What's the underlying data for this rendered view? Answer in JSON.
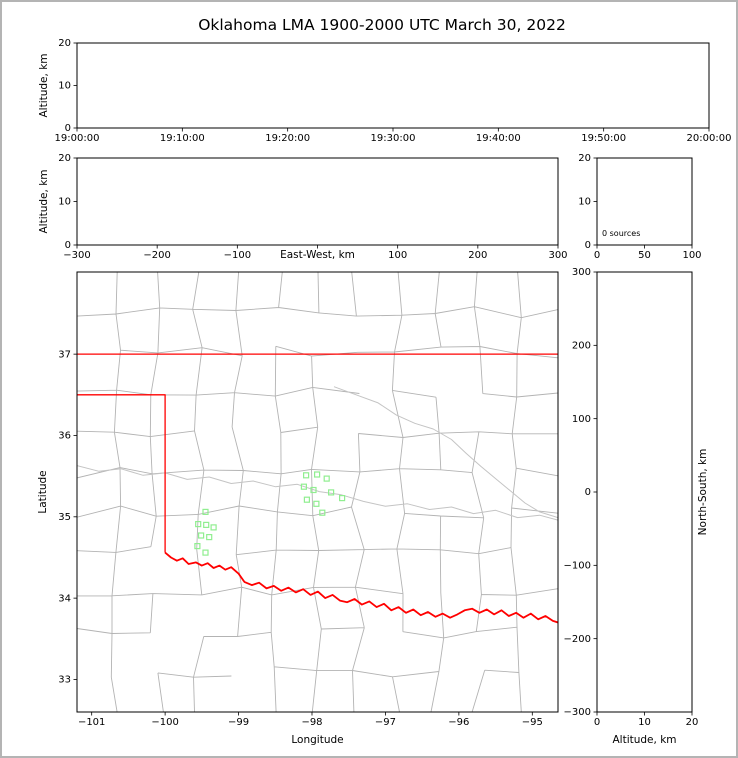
{
  "title": "Oklahoma LMA 1900-2000 UTC March 30, 2022",
  "colors": {
    "figure_border": "#b4b4b4",
    "background": "#ffffff",
    "axes_frame": "#000000",
    "text": "#000000",
    "state_border": "#ff0000",
    "county_lines": "#b3b3b3",
    "rivers": "#c4c4c4",
    "marker": "#90ee90"
  },
  "chart_data": [
    {
      "id": "time_height",
      "type": "scatter",
      "xlabel": "",
      "ylabel": "Altitude, km",
      "xlim": [
        0,
        6
      ],
      "ylim": [
        0,
        20
      ],
      "x_ticks": {
        "values": [
          0,
          1,
          2,
          3,
          4,
          5,
          6
        ],
        "labels": [
          "19:00:00",
          "19:10:00",
          "19:20:00",
          "19:30:00",
          "19:40:00",
          "19:50:00",
          "20:00:00"
        ]
      },
      "y_ticks": {
        "values": [
          0,
          10,
          20
        ],
        "labels": [
          "0",
          "10",
          "20"
        ]
      },
      "points": []
    },
    {
      "id": "ew_height",
      "type": "scatter",
      "xlabel": "East-West, km",
      "ylabel": "Altitude, km",
      "xlim": [
        -300,
        300
      ],
      "ylim": [
        0,
        20
      ],
      "x_ticks": {
        "values": [
          -300,
          -200,
          -100,
          0,
          100,
          200,
          300
        ],
        "labels": [
          "−300",
          "−200",
          "−100",
          "",
          "100",
          "200",
          "300"
        ]
      },
      "y_ticks": {
        "values": [
          0,
          10,
          20
        ],
        "labels": [
          "0",
          "10",
          "20"
        ]
      },
      "points": []
    },
    {
      "id": "source_histogram",
      "type": "scatter",
      "xlabel": "",
      "ylabel": "",
      "annotation": "0 sources",
      "xlim": [
        0,
        100
      ],
      "ylim": [
        0,
        20
      ],
      "x_ticks": {
        "values": [
          0,
          50,
          100
        ],
        "labels": [
          "0",
          "50",
          "100"
        ]
      },
      "y_ticks": {
        "values": [
          0,
          10,
          20
        ],
        "labels": [
          "0",
          "10",
          "20"
        ]
      },
      "points": []
    },
    {
      "id": "plan_view_map",
      "type": "scatter",
      "xlabel": "Longitude",
      "ylabel": "Latitude",
      "xlim": [
        -101.2,
        -94.65
      ],
      "ylim": [
        32.6,
        38.01
      ],
      "x_ticks": {
        "values": [
          -101,
          -100,
          -99,
          -98,
          -97,
          -96,
          -95
        ],
        "labels": [
          "−101",
          "−100",
          "−99",
          "−98",
          "−97",
          "−96",
          "−95"
        ]
      },
      "y_ticks": {
        "values": [
          33,
          34,
          35,
          36,
          37
        ],
        "labels": [
          "33",
          "34",
          "35",
          "36",
          "37"
        ]
      },
      "points": [
        [
          -99.45,
          35.06
        ],
        [
          -99.55,
          34.91
        ],
        [
          -99.44,
          34.9
        ],
        [
          -99.34,
          34.87
        ],
        [
          -99.51,
          34.77
        ],
        [
          -99.4,
          34.75
        ],
        [
          -99.56,
          34.64
        ],
        [
          -99.45,
          34.56
        ],
        [
          -98.08,
          35.51
        ],
        [
          -97.93,
          35.52
        ],
        [
          -97.8,
          35.47
        ],
        [
          -98.11,
          35.37
        ],
        [
          -97.98,
          35.33
        ],
        [
          -97.74,
          35.3
        ],
        [
          -98.07,
          35.21
        ],
        [
          -97.94,
          35.16
        ],
        [
          -97.59,
          35.23
        ],
        [
          -97.86,
          35.05
        ]
      ],
      "state_border": [
        [
          [
            -101.2,
            37.0
          ],
          [
            -94.65,
            37.0
          ]
        ],
        [
          [
            -101.2,
            36.5
          ],
          [
            -100.0,
            36.5
          ],
          [
            -100.0,
            34.56
          ]
        ],
        [
          [
            -100.0,
            34.56
          ],
          [
            -99.92,
            34.5
          ],
          [
            -99.84,
            34.46
          ],
          [
            -99.76,
            34.49
          ],
          [
            -99.68,
            34.42
          ],
          [
            -99.58,
            34.44
          ],
          [
            -99.5,
            34.4
          ],
          [
            -99.42,
            34.43
          ],
          [
            -99.34,
            34.37
          ],
          [
            -99.26,
            34.4
          ],
          [
            -99.18,
            34.35
          ],
          [
            -99.1,
            34.38
          ],
          [
            -99.0,
            34.3
          ],
          [
            -98.92,
            34.2
          ],
          [
            -98.82,
            34.16
          ],
          [
            -98.72,
            34.19
          ],
          [
            -98.62,
            34.12
          ],
          [
            -98.52,
            34.15
          ],
          [
            -98.42,
            34.09
          ],
          [
            -98.32,
            34.13
          ],
          [
            -98.22,
            34.07
          ],
          [
            -98.12,
            34.11
          ],
          [
            -98.02,
            34.04
          ],
          [
            -97.92,
            34.08
          ],
          [
            -97.82,
            34.0
          ],
          [
            -97.72,
            34.04
          ],
          [
            -97.62,
            33.97
          ],
          [
            -97.52,
            33.95
          ],
          [
            -97.42,
            33.99
          ],
          [
            -97.32,
            33.92
          ],
          [
            -97.22,
            33.96
          ],
          [
            -97.12,
            33.89
          ],
          [
            -97.02,
            33.93
          ],
          [
            -96.92,
            33.85
          ],
          [
            -96.82,
            33.89
          ],
          [
            -96.72,
            33.82
          ],
          [
            -96.62,
            33.86
          ],
          [
            -96.52,
            33.79
          ],
          [
            -96.42,
            33.83
          ],
          [
            -96.32,
            33.77
          ],
          [
            -96.22,
            33.81
          ],
          [
            -96.12,
            33.76
          ],
          [
            -96.02,
            33.8
          ],
          [
            -95.92,
            33.85
          ],
          [
            -95.82,
            33.87
          ],
          [
            -95.72,
            33.82
          ],
          [
            -95.62,
            33.86
          ],
          [
            -95.52,
            33.8
          ],
          [
            -95.42,
            33.85
          ],
          [
            -95.32,
            33.78
          ],
          [
            -95.22,
            33.82
          ],
          [
            -95.12,
            33.76
          ],
          [
            -95.02,
            33.81
          ],
          [
            -94.92,
            33.74
          ],
          [
            -94.82,
            33.78
          ],
          [
            -94.72,
            33.72
          ],
          [
            -94.65,
            33.7
          ]
        ]
      ],
      "rivers": [
        [
          [
            -101.2,
            35.63
          ],
          [
            -100.9,
            35.56
          ],
          [
            -100.6,
            35.59
          ],
          [
            -100.3,
            35.51
          ],
          [
            -100.0,
            35.54
          ],
          [
            -99.7,
            35.46
          ],
          [
            -99.4,
            35.49
          ],
          [
            -99.1,
            35.41
          ],
          [
            -98.8,
            35.44
          ],
          [
            -98.5,
            35.37
          ],
          [
            -98.2,
            35.4
          ],
          [
            -97.9,
            35.31
          ],
          [
            -97.6,
            35.27
          ],
          [
            -97.3,
            35.19
          ],
          [
            -97.0,
            35.13
          ],
          [
            -96.7,
            35.16
          ],
          [
            -96.4,
            35.09
          ],
          [
            -96.1,
            35.12
          ],
          [
            -95.8,
            35.04
          ],
          [
            -95.5,
            35.08
          ],
          [
            -95.2,
            34.99
          ],
          [
            -94.9,
            35.02
          ],
          [
            -94.65,
            34.96
          ]
        ],
        [
          [
            -97.7,
            36.6
          ],
          [
            -97.4,
            36.5
          ],
          [
            -97.1,
            36.4
          ],
          [
            -96.85,
            36.25
          ],
          [
            -96.6,
            36.15
          ],
          [
            -96.35,
            36.08
          ],
          [
            -96.1,
            35.95
          ],
          [
            -95.9,
            35.78
          ],
          [
            -95.7,
            35.62
          ],
          [
            -95.5,
            35.47
          ],
          [
            -95.3,
            35.32
          ],
          [
            -95.1,
            35.17
          ],
          [
            -94.9,
            35.06
          ],
          [
            -94.65,
            34.99
          ]
        ]
      ]
    },
    {
      "id": "ns_height",
      "type": "scatter",
      "xlabel": "Altitude, km",
      "ylabel": "North-South, km",
      "xlim": [
        0,
        20
      ],
      "ylim": [
        -300,
        300
      ],
      "x_ticks": {
        "values": [
          0,
          10,
          20
        ],
        "labels": [
          "0",
          "10",
          "20"
        ]
      },
      "y_ticks": {
        "values": [
          -300,
          -200,
          -100,
          0,
          100,
          200,
          300
        ],
        "labels": [
          "−300",
          "−200",
          "−100",
          "0",
          "100",
          "200",
          "300"
        ]
      },
      "points": []
    }
  ]
}
